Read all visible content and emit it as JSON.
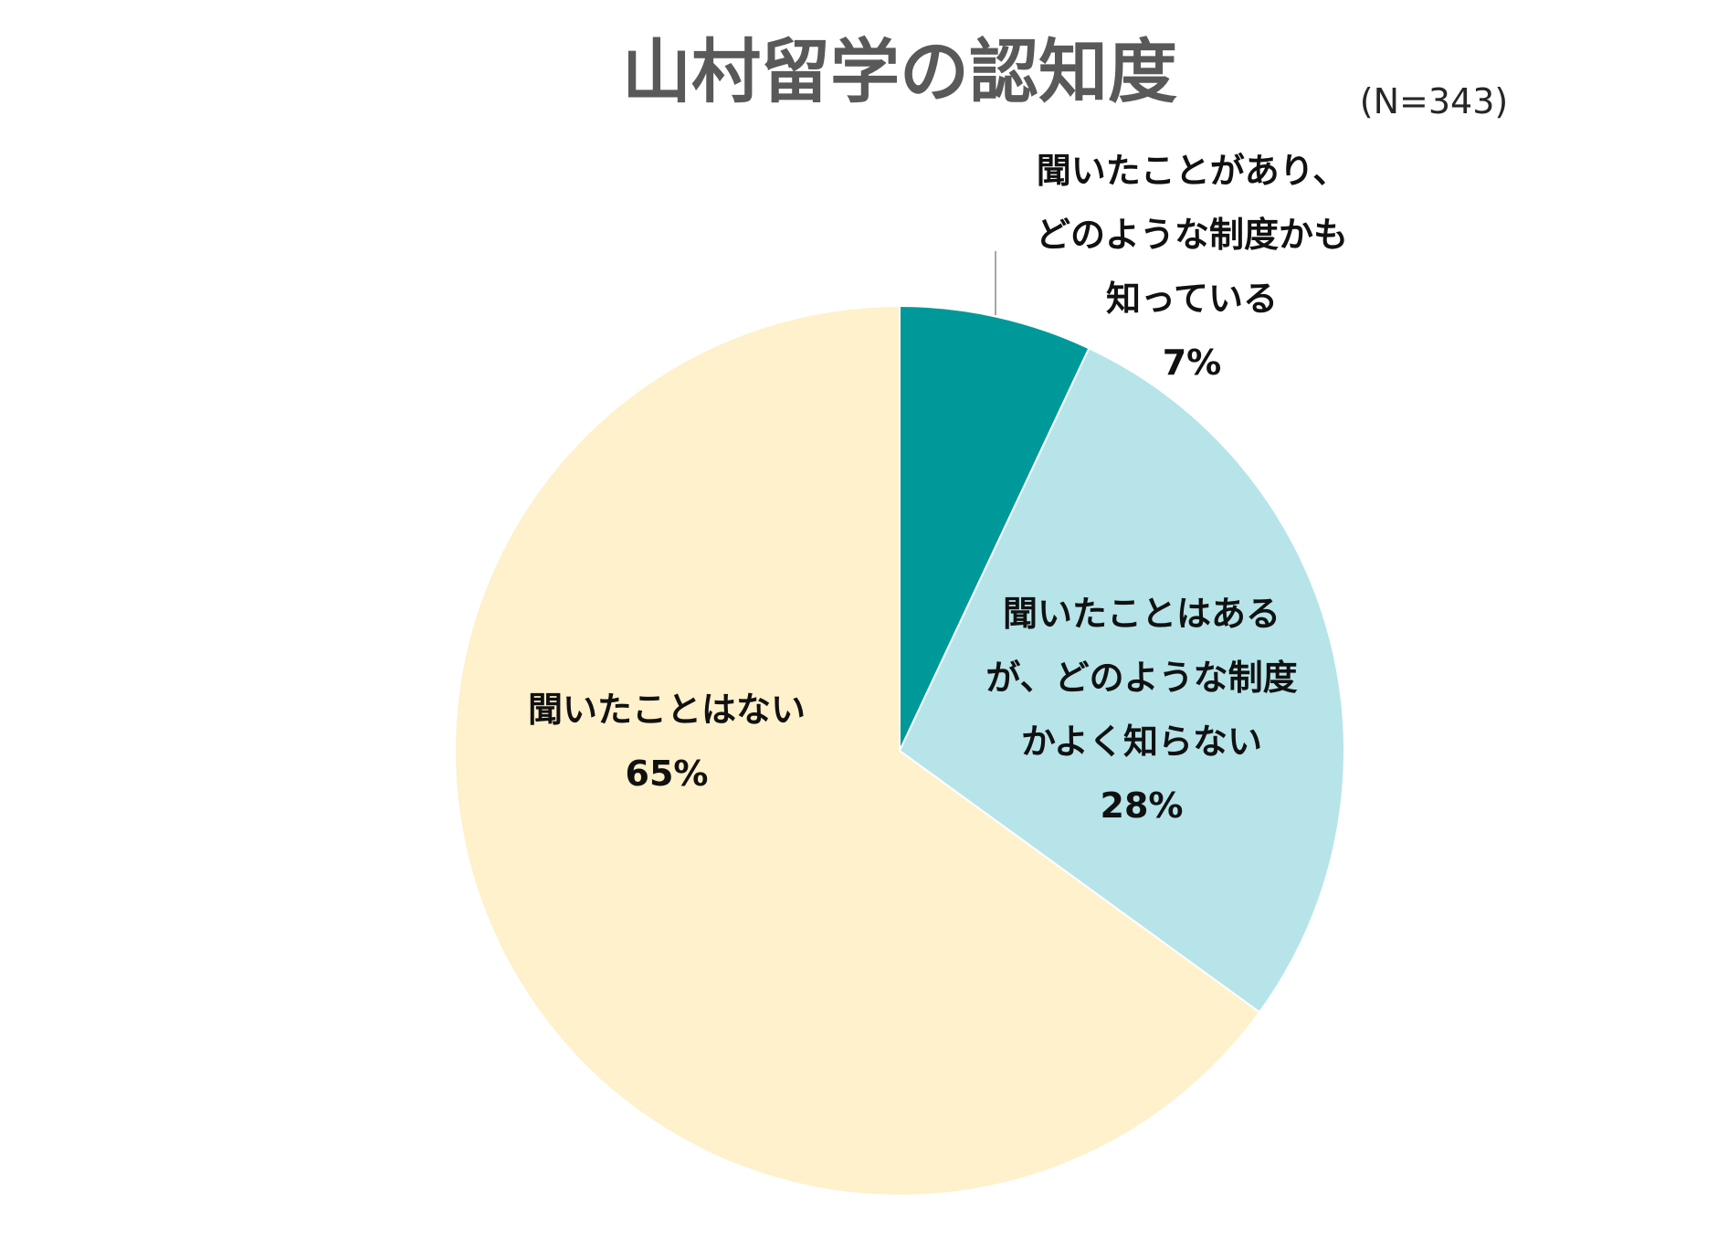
{
  "chart_data": {
    "type": "pie",
    "title": "山村留学の認知度",
    "sample_note": "(N=343)",
    "slices": [
      {
        "label_lines": [
          "聞いたことがあり、",
          "どのような制度かも",
          "知っている"
        ],
        "value": 7,
        "value_label": "7%",
        "color": "#009999"
      },
      {
        "label_lines": [
          "聞いたことはある",
          "が、どのような制度",
          "かよく知らない"
        ],
        "value": 28,
        "value_label": "28%",
        "color": "#B6E4E9"
      },
      {
        "label_lines": [
          "聞いたことはない"
        ],
        "value": 65,
        "value_label": "65%",
        "color": "#FEF1CB"
      }
    ]
  }
}
